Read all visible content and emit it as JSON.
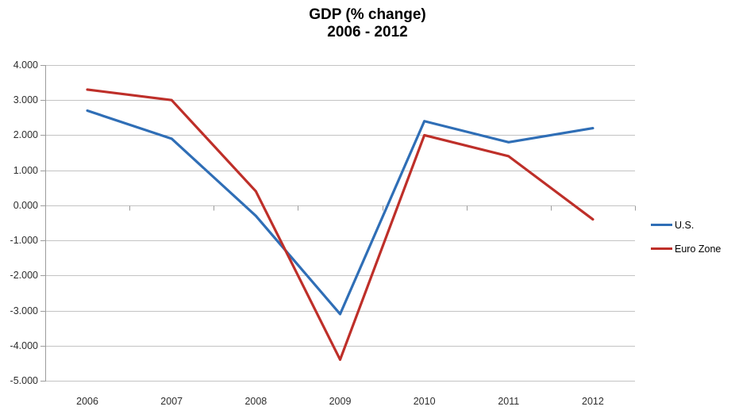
{
  "chart_data": {
    "type": "line",
    "title": "GDP (% change)",
    "subtitle": "2006 - 2012",
    "categories": [
      "2006",
      "2007",
      "2008",
      "2009",
      "2010",
      "2011",
      "2012"
    ],
    "series": [
      {
        "name": "U.S.",
        "color": "#2F6EB6",
        "values": [
          2.7,
          1.9,
          -0.3,
          -3.1,
          2.4,
          1.8,
          2.2
        ]
      },
      {
        "name": "Euro Zone",
        "color": "#BE2F29",
        "values": [
          3.3,
          3.0,
          0.4,
          -4.4,
          2.0,
          1.4,
          -0.4
        ]
      }
    ],
    "ylim": [
      -5,
      4
    ],
    "ytick_step": 1,
    "ytick_labels": [
      "4.000",
      "3.000",
      "2.000",
      "1.000",
      "0.000",
      "-1.000",
      "-2.000",
      "-3.000",
      "-4.000",
      "-5.000"
    ],
    "xlabel": "",
    "ylabel": "",
    "grid": true,
    "legend_position": "right",
    "grid_color": "#c3c3c3",
    "axis_color": "#9c9c9c"
  }
}
